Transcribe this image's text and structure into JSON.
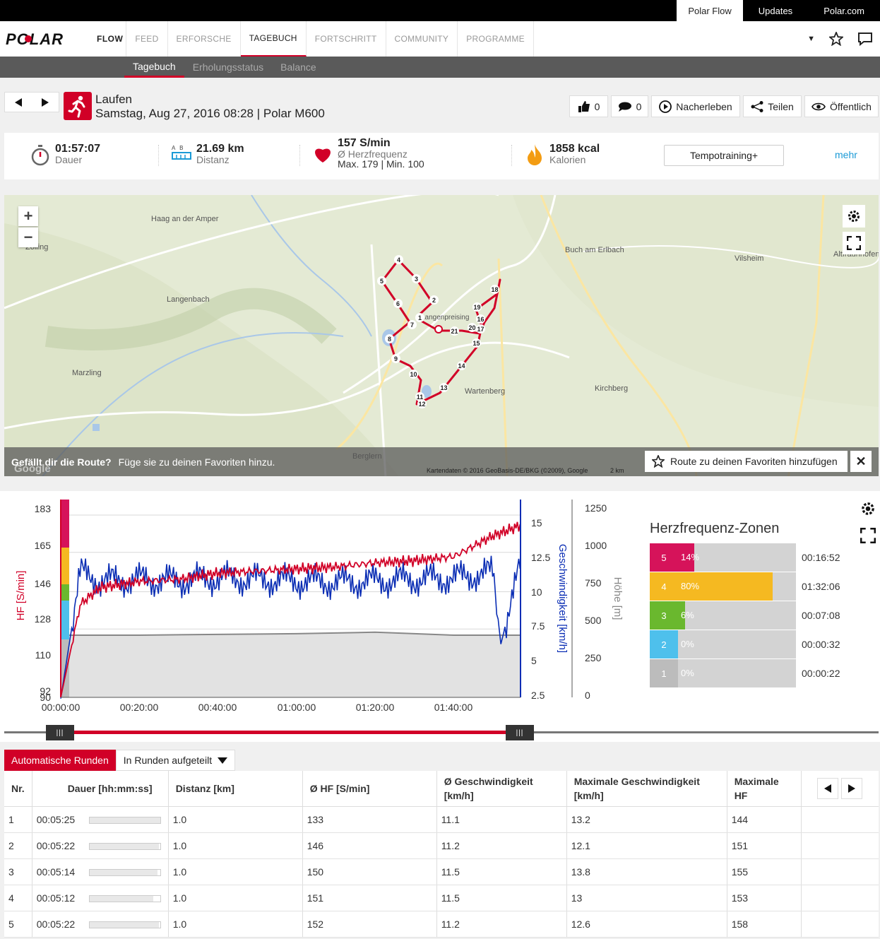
{
  "topbar": {
    "links": [
      "Polar Flow",
      "Updates",
      "Polar.com"
    ]
  },
  "nav": {
    "brand": "FLOW",
    "items": [
      "FEED",
      "ERFORSCHE",
      "TAGEBUCH",
      "FORTSCHRITT",
      "COMMUNITY",
      "PROGRAMME"
    ],
    "active": "TAGEBUCH"
  },
  "subnav": {
    "items": [
      "Tagebuch",
      "Erholungsstatus",
      "Balance"
    ],
    "active": "Tagebuch"
  },
  "session": {
    "sport": "Laufen",
    "subtitle": "Samstag, Aug 27, 2016 08:28 | Polar M600"
  },
  "actions": {
    "likes": "0",
    "comments": "0",
    "relive": "Nacherleben",
    "share": "Teilen",
    "visibility": "Öffentlich"
  },
  "summary": {
    "duration": {
      "value": "01:57:07",
      "label": "Dauer"
    },
    "distance": {
      "value": "21.69 km",
      "label": "Distanz"
    },
    "ab_label": "A  B",
    "hr": {
      "value": "157 S/min",
      "label": "Ø Herzfrequenz",
      "minmax": "Max. 179  |  Min. 100"
    },
    "calories": {
      "value": "1858 kcal",
      "label": "Kalorien"
    },
    "training_button": "Tempotraining+",
    "more": "mehr"
  },
  "map": {
    "prompt_bold": "Gefällt dir die Route?",
    "prompt_text": "Füge sie zu deinen Favoriten hinzu.",
    "favorite_button": "Route zu deinen Favoriten hinzufügen",
    "attribution": "Kartendaten © 2016 GeoBasis-DE/BKG (©2009), Google",
    "scale": "2 km",
    "watermark": "Google",
    "places": [
      "Haag an der Amper",
      "Zolling",
      "Langenbach",
      "Marzling",
      "Buch am Erlbach",
      "Vilsheim",
      "Altfraunhofen",
      "Wartenberg",
      "Kirchberg",
      "Berglern",
      "Langenpreising"
    ],
    "markers": [
      "1",
      "2",
      "3",
      "4",
      "5",
      "6",
      "7",
      "8",
      "9",
      "10",
      "11",
      "12",
      "13",
      "14",
      "15",
      "16",
      "17",
      "18",
      "19",
      "20",
      "21"
    ]
  },
  "chart_data": {
    "type": "line",
    "x_ticks": [
      "00:00:00",
      "00:20:00",
      "00:40:00",
      "01:00:00",
      "01:20:00",
      "01:40:00"
    ],
    "hr_axis": {
      "label": "HF [S/min]",
      "ticks": [
        "183",
        "165",
        "146",
        "128",
        "110",
        "92",
        "90"
      ]
    },
    "speed_axis": {
      "label": "Geschwindigkeit [km/h]",
      "ticks": [
        "15",
        "12.5",
        "10",
        "7.5",
        "5",
        "2.5"
      ]
    },
    "alt_axis": {
      "label": "Höhe [m]",
      "ticks": [
        "1250",
        "1000",
        "750",
        "500",
        "250",
        "0"
      ]
    },
    "hr_color": "#d10027",
    "speed_color": "#0a2db4",
    "alt_color": "#888888",
    "series": [
      {
        "name": "HF",
        "unit": "S/min",
        "x_min": [
          0,
          5,
          10,
          20,
          30,
          40,
          50,
          60,
          70,
          80,
          90,
          100,
          105,
          110,
          117
        ],
        "values": [
          95,
          140,
          148,
          151,
          152,
          155,
          156,
          157,
          158,
          160,
          161,
          163,
          168,
          173,
          178
        ]
      },
      {
        "name": "Geschwindigkeit",
        "unit": "km/h",
        "x_min": [
          0,
          5,
          10,
          20,
          30,
          40,
          50,
          60,
          70,
          80,
          90,
          100,
          110,
          112,
          117
        ],
        "values": [
          3,
          11.8,
          11.2,
          11.3,
          11.2,
          11.4,
          11.3,
          11.2,
          11.1,
          11.2,
          11.3,
          11.4,
          11.8,
          6.8,
          12.3
        ]
      },
      {
        "name": "Höhe",
        "unit": "m",
        "x_min": [
          0,
          2,
          20,
          40,
          60,
          80,
          100,
          117
        ],
        "values": [
          0,
          420,
          420,
          425,
          430,
          440,
          420,
          420
        ]
      }
    ]
  },
  "zones": {
    "title": "Herzfrequenz-Zonen",
    "rows": [
      {
        "zone": "5",
        "pct": "14%",
        "fill": 0.14,
        "time": "00:16:52",
        "color": "#d6135a"
      },
      {
        "zone": "4",
        "pct": "80%",
        "fill": 0.8,
        "time": "01:32:06",
        "color": "#f5b921"
      },
      {
        "zone": "3",
        "pct": "6%",
        "fill": 0.06,
        "time": "00:07:08",
        "color": "#6ab82e"
      },
      {
        "zone": "2",
        "pct": "0%",
        "fill": 0.0,
        "time": "00:00:32",
        "color": "#4ec0ec"
      },
      {
        "zone": "1",
        "pct": "0%",
        "fill": 0.0,
        "time": "00:00:22",
        "color": "#bcbcbc"
      }
    ]
  },
  "laps": {
    "tab_active": "Automatische Runden",
    "tab_select": "In Runden aufgeteilt",
    "headers": [
      "Nr.",
      "Dauer [hh:mm:ss]",
      "Distanz [km]",
      "Ø HF [S/min]",
      "Ø Geschwindigkeit [km/h]",
      "Maximale Geschwindigkeit [km/h]",
      "Maximale HF"
    ],
    "rows": [
      {
        "nr": "1",
        "dur": "00:05:25",
        "bar": 1.0,
        "dist": "1.0",
        "hr": "133",
        "spd": "11.1",
        "maxspd": "13.2",
        "maxhr": "144"
      },
      {
        "nr": "2",
        "dur": "00:05:22",
        "bar": 0.98,
        "dist": "1.0",
        "hr": "146",
        "spd": "11.2",
        "maxspd": "12.1",
        "maxhr": "151"
      },
      {
        "nr": "3",
        "dur": "00:05:14",
        "bar": 0.96,
        "dist": "1.0",
        "hr": "150",
        "spd": "11.5",
        "maxspd": "13.8",
        "maxhr": "155"
      },
      {
        "nr": "4",
        "dur": "00:05:12",
        "bar": 0.9,
        "dist": "1.0",
        "hr": "151",
        "spd": "11.5",
        "maxspd": "13",
        "maxhr": "153"
      },
      {
        "nr": "5",
        "dur": "00:05:22",
        "bar": 0.98,
        "dist": "1.0",
        "hr": "152",
        "spd": "11.2",
        "maxspd": "12.6",
        "maxhr": "158"
      }
    ]
  }
}
